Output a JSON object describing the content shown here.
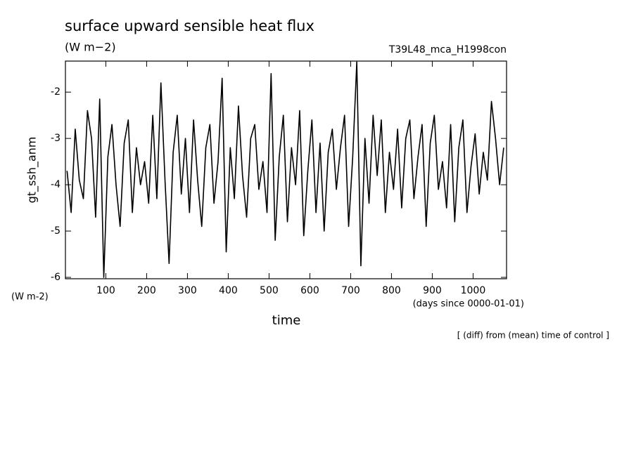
{
  "chart_data": {
    "type": "line",
    "title": "surface upward sensible heat flux",
    "subtitle": "(W m−2)",
    "run_label": "T39L48_mca_H1998con",
    "y_label": "gt_ssh_anm",
    "y_unit_label": "(W m-2)",
    "x_unit_label": "(days since 0000-01-01)",
    "x_label": "time",
    "note": "[ (diff) from (mean) time of control ]",
    "xlim": [
      1,
      1082
    ],
    "ylim": [
      -6.03,
      -1.33
    ],
    "xticks": [
      100,
      200,
      300,
      400,
      500,
      600,
      700,
      800,
      900,
      1000
    ],
    "yticks": [
      -6,
      -5,
      -4,
      -3,
      -2
    ],
    "x": [
      5,
      15,
      25,
      35,
      45,
      55,
      65,
      75,
      85,
      95,
      105,
      115,
      125,
      135,
      145,
      155,
      165,
      175,
      185,
      195,
      205,
      215,
      225,
      235,
      245,
      255,
      265,
      275,
      285,
      295,
      305,
      315,
      325,
      335,
      345,
      355,
      365,
      375,
      385,
      395,
      405,
      415,
      425,
      435,
      445,
      455,
      465,
      475,
      485,
      495,
      505,
      515,
      525,
      535,
      545,
      555,
      565,
      575,
      585,
      595,
      605,
      615,
      625,
      635,
      645,
      655,
      665,
      675,
      685,
      695,
      705,
      715,
      725,
      735,
      745,
      755,
      765,
      775,
      785,
      795,
      805,
      815,
      825,
      835,
      845,
      855,
      865,
      875,
      885,
      895,
      905,
      915,
      925,
      935,
      945,
      955,
      965,
      975,
      985,
      995,
      1005,
      1015,
      1025,
      1035,
      1045,
      1055,
      1065,
      1075
    ],
    "series": [
      {
        "name": "gt_ssh_anm",
        "color": "#000000",
        "values": [
          -3.7,
          -4.6,
          -2.8,
          -3.9,
          -4.3,
          -2.4,
          -3.0,
          -4.7,
          -2.15,
          -6.0,
          -3.4,
          -2.7,
          -4.0,
          -4.9,
          -3.1,
          -2.6,
          -4.6,
          -3.2,
          -4.0,
          -3.5,
          -4.4,
          -2.5,
          -4.3,
          -1.8,
          -3.9,
          -5.7,
          -3.3,
          -2.5,
          -4.2,
          -3.0,
          -4.6,
          -2.6,
          -3.9,
          -4.9,
          -3.2,
          -2.7,
          -4.4,
          -3.5,
          -1.7,
          -5.45,
          -3.2,
          -4.3,
          -2.3,
          -3.8,
          -4.7,
          -3.0,
          -2.7,
          -4.1,
          -3.5,
          -4.6,
          -1.6,
          -5.2,
          -3.4,
          -2.5,
          -4.8,
          -3.2,
          -4.0,
          -2.4,
          -5.1,
          -3.7,
          -2.6,
          -4.6,
          -3.1,
          -5.0,
          -3.3,
          -2.8,
          -4.1,
          -3.2,
          -2.5,
          -4.9,
          -3.4,
          -1.35,
          -5.75,
          -3.0,
          -4.4,
          -2.5,
          -3.8,
          -2.6,
          -4.6,
          -3.3,
          -4.1,
          -2.8,
          -4.5,
          -3.0,
          -2.6,
          -4.3,
          -3.4,
          -2.7,
          -4.9,
          -3.1,
          -2.5,
          -4.1,
          -3.5,
          -4.5,
          -2.7,
          -4.8,
          -3.2,
          -2.6,
          -4.6,
          -3.6,
          -2.9,
          -4.2,
          -3.3,
          -3.9,
          -2.2,
          -3.0,
          -4.0,
          -3.2
        ]
      }
    ]
  }
}
